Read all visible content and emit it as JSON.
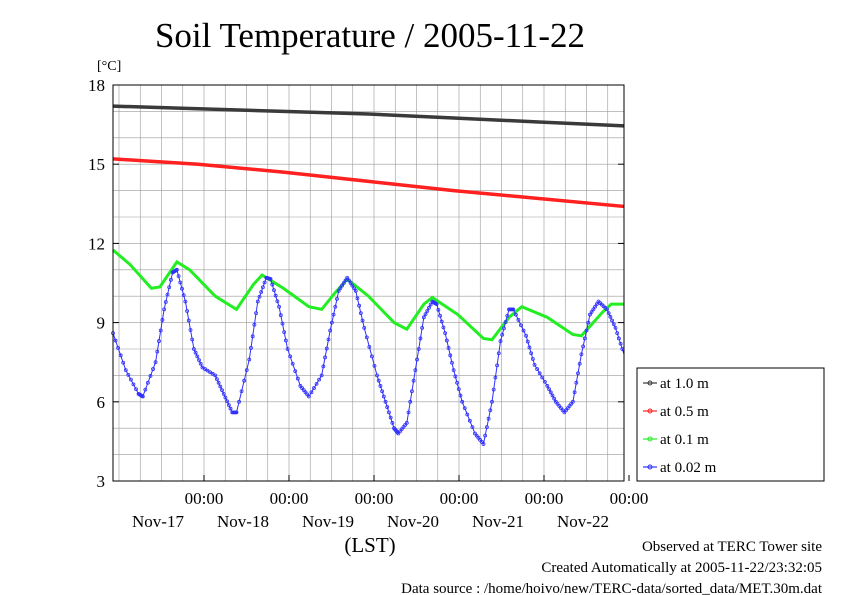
{
  "chart_data": {
    "type": "line",
    "title": "Soil Temperature / 2005-11-22",
    "ylabel": "[°C]",
    "xlabel": "(LST)",
    "ylim": [
      3,
      18
    ],
    "yticks": [
      "3",
      "6",
      "9",
      "12",
      "15",
      "18"
    ],
    "xlim_days": [
      0,
      6
    ],
    "xticks": [
      {
        "time": "00:00",
        "date": "Nov-17"
      },
      {
        "time": "00:00",
        "date": "Nov-18"
      },
      {
        "time": "00:00",
        "date": "Nov-19"
      },
      {
        "time": "00:00",
        "date": "Nov-20"
      },
      {
        "time": "00:00",
        "date": "Nov-21"
      },
      {
        "time": "00:00",
        "date": "Nov-22"
      }
    ],
    "grid": true,
    "legend_position": "right",
    "series": [
      {
        "name": "at 1.0 m",
        "color": "#3a3a3a",
        "points": [
          [
            0,
            17.2
          ],
          [
            1,
            17.1
          ],
          [
            2,
            17.0
          ],
          [
            3,
            16.9
          ],
          [
            4,
            16.75
          ],
          [
            5,
            16.6
          ],
          [
            6,
            16.45
          ]
        ]
      },
      {
        "name": "at 0.5 m",
        "color": "#ff2020",
        "points": [
          [
            0,
            15.2
          ],
          [
            1,
            15.0
          ],
          [
            2,
            14.7
          ],
          [
            3,
            14.35
          ],
          [
            4,
            14.0
          ],
          [
            5,
            13.7
          ],
          [
            6,
            13.4
          ]
        ]
      },
      {
        "name": "at 0.1 m",
        "color": "#22ee22",
        "points": [
          [
            0,
            11.75
          ],
          [
            0.2,
            11.2
          ],
          [
            0.45,
            10.3
          ],
          [
            0.55,
            10.35
          ],
          [
            0.75,
            11.3
          ],
          [
            0.9,
            11.0
          ],
          [
            1.2,
            10.0
          ],
          [
            1.45,
            9.5
          ],
          [
            1.65,
            10.45
          ],
          [
            1.75,
            10.8
          ],
          [
            2.0,
            10.3
          ],
          [
            2.3,
            9.6
          ],
          [
            2.45,
            9.5
          ],
          [
            2.6,
            10.1
          ],
          [
            2.75,
            10.65
          ],
          [
            3.0,
            10.0
          ],
          [
            3.3,
            9.0
          ],
          [
            3.45,
            8.75
          ],
          [
            3.65,
            9.7
          ],
          [
            3.75,
            9.95
          ],
          [
            4.05,
            9.3
          ],
          [
            4.35,
            8.4
          ],
          [
            4.45,
            8.35
          ],
          [
            4.65,
            9.2
          ],
          [
            4.8,
            9.6
          ],
          [
            5.1,
            9.2
          ],
          [
            5.4,
            8.55
          ],
          [
            5.5,
            8.5
          ],
          [
            5.75,
            9.4
          ],
          [
            5.85,
            9.7
          ],
          [
            6,
            9.7
          ]
        ]
      },
      {
        "name": "at 0.02 m",
        "color": "#3030ff",
        "points": [
          [
            0,
            8.6
          ],
          [
            0.15,
            7.2
          ],
          [
            0.3,
            6.3
          ],
          [
            0.35,
            6.2
          ],
          [
            0.5,
            7.5
          ],
          [
            0.6,
            9.5
          ],
          [
            0.7,
            10.9
          ],
          [
            0.75,
            11.0
          ],
          [
            0.85,
            9.8
          ],
          [
            0.95,
            8.0
          ],
          [
            1.05,
            7.3
          ],
          [
            1.2,
            7.0
          ],
          [
            1.3,
            6.3
          ],
          [
            1.4,
            5.6
          ],
          [
            1.45,
            5.6
          ],
          [
            1.6,
            7.6
          ],
          [
            1.7,
            9.8
          ],
          [
            1.8,
            10.7
          ],
          [
            1.85,
            10.65
          ],
          [
            1.95,
            9.6
          ],
          [
            2.05,
            8.0
          ],
          [
            2.2,
            6.6
          ],
          [
            2.3,
            6.2
          ],
          [
            2.45,
            7.0
          ],
          [
            2.55,
            8.7
          ],
          [
            2.65,
            10.2
          ],
          [
            2.75,
            10.7
          ],
          [
            2.85,
            10.2
          ],
          [
            2.95,
            8.8
          ],
          [
            3.1,
            7.0
          ],
          [
            3.2,
            6.0
          ],
          [
            3.3,
            5.0
          ],
          [
            3.35,
            4.8
          ],
          [
            3.45,
            5.2
          ],
          [
            3.55,
            7.2
          ],
          [
            3.65,
            9.2
          ],
          [
            3.75,
            9.8
          ],
          [
            3.8,
            9.7
          ],
          [
            3.9,
            8.6
          ],
          [
            4.0,
            7.2
          ],
          [
            4.1,
            6.0
          ],
          [
            4.25,
            4.8
          ],
          [
            4.35,
            4.4
          ],
          [
            4.45,
            6.0
          ],
          [
            4.55,
            8.3
          ],
          [
            4.65,
            9.5
          ],
          [
            4.7,
            9.5
          ],
          [
            4.85,
            8.5
          ],
          [
            4.95,
            7.4
          ],
          [
            5.1,
            6.6
          ],
          [
            5.2,
            6.0
          ],
          [
            5.3,
            5.6
          ],
          [
            5.4,
            6.0
          ],
          [
            5.5,
            7.8
          ],
          [
            5.6,
            9.3
          ],
          [
            5.7,
            9.8
          ],
          [
            5.8,
            9.5
          ],
          [
            5.9,
            8.8
          ],
          [
            6,
            7.8
          ]
        ]
      }
    ]
  },
  "footer": {
    "line1": "Observed at TERC Tower site",
    "line2": "Created Automatically at 2005-11-22/23:32:05",
    "line3": "Data source : /home/hoivo/new/TERC-data/sorted_data/MET.30m.dat"
  }
}
